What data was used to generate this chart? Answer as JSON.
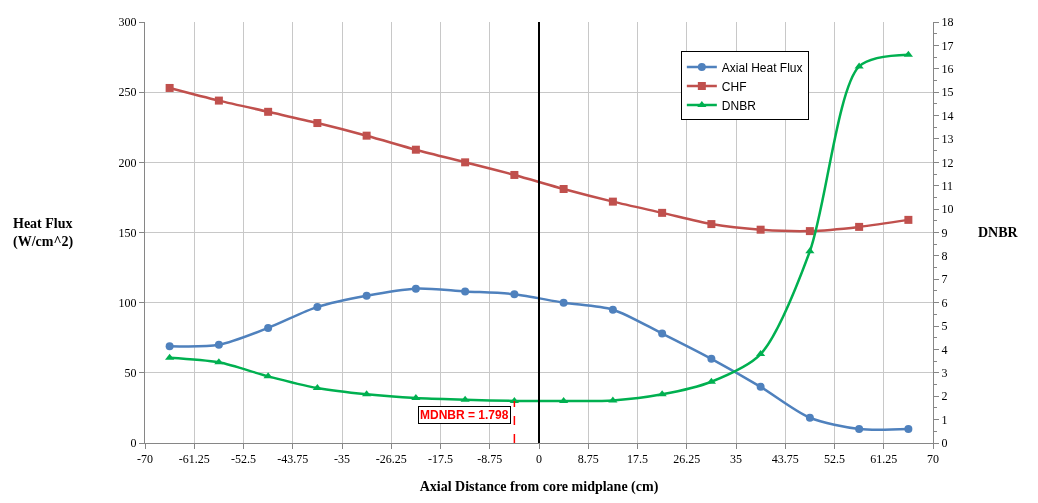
{
  "chart_data": {
    "type": "line",
    "xlabel": "Axial Distance from core midplane (cm)",
    "ylabel": "Heat Flux\n(W/cm^2)",
    "y2label": "DNBR",
    "x": [
      -65.625,
      -56.875,
      -48.125,
      -39.375,
      -30.625,
      -21.875,
      -13.125,
      -4.375,
      4.375,
      13.125,
      21.875,
      30.625,
      39.375,
      48.125,
      56.875,
      65.625
    ],
    "series": [
      {
        "name": "Axial Heat Flux",
        "color": "#4f81bd",
        "marker": "circle",
        "values": [
          69,
          70,
          82,
          97,
          105,
          110,
          108,
          106,
          100,
          95,
          78,
          60,
          40,
          18,
          10,
          10
        ]
      },
      {
        "name": "CHF",
        "color": "#c0504d",
        "marker": "square",
        "values": [
          253,
          244,
          236,
          228,
          219,
          209,
          200,
          191,
          181,
          172,
          164,
          156,
          152,
          151,
          154,
          159
        ]
      },
      {
        "name": "DNBR",
        "color": "#00b050",
        "marker": "triangle",
        "axis": "y2",
        "values": [
          3.65,
          3.45,
          2.85,
          2.35,
          2.08,
          1.92,
          1.85,
          1.8,
          1.8,
          1.82,
          2.08,
          2.62,
          3.8,
          8.2,
          16.1,
          16.6
        ]
      }
    ],
    "xlim": [
      -70,
      70
    ],
    "xticks": [
      -70,
      -61.25,
      -52.5,
      -43.75,
      -35,
      -26.25,
      -17.5,
      -8.75,
      0,
      8.75,
      17.5,
      26.25,
      35,
      43.75,
      52.5,
      61.25,
      70
    ],
    "ylim": [
      0,
      300
    ],
    "yticks": [
      0,
      50,
      100,
      150,
      200,
      250,
      300
    ],
    "y2lim": [
      0,
      18
    ],
    "y2ticks": [
      0,
      1,
      2,
      3,
      4,
      5,
      6,
      7,
      8,
      9,
      10,
      11,
      12,
      13,
      14,
      15,
      16,
      17,
      18
    ],
    "ref_lines": [
      {
        "axis": "x",
        "value": 0,
        "color": "#000000",
        "line_style": "solid"
      },
      {
        "axis": "x",
        "value": -4.375,
        "color": "#ff0000",
        "line_style": "dashed"
      }
    ],
    "annotations": [
      "MDNBR = 1.798"
    ],
    "grid": true,
    "legend": "top right"
  }
}
